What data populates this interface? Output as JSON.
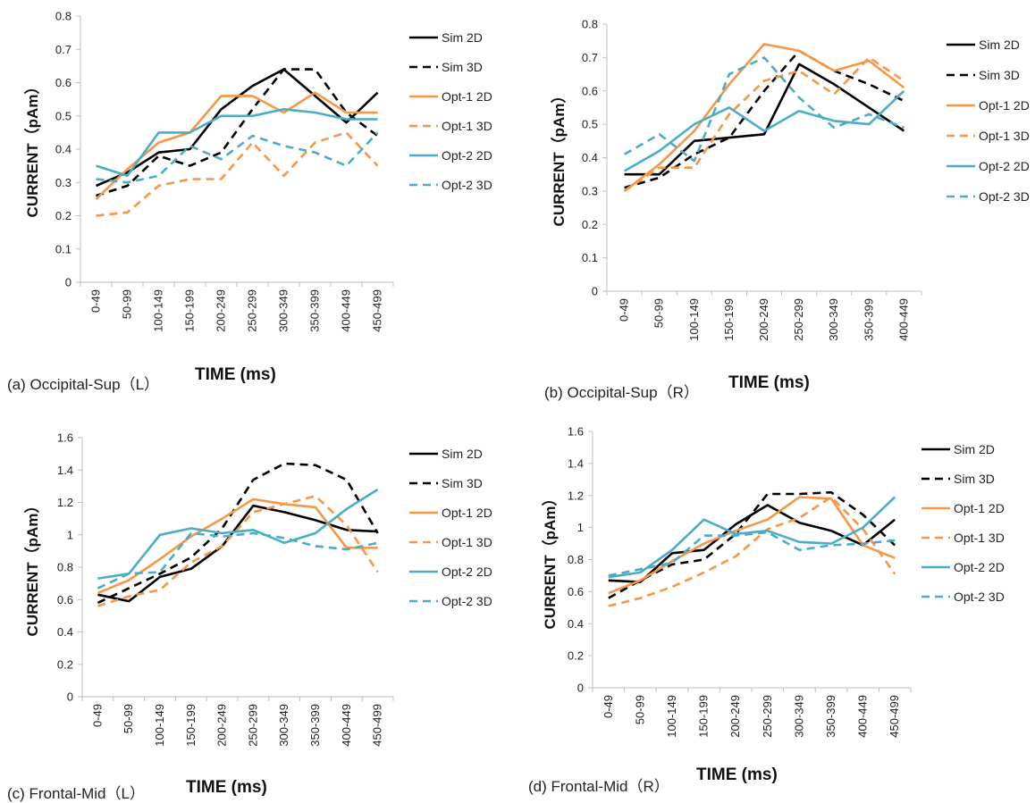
{
  "styles": {
    "Sim 2D": {
      "color": "#000000",
      "dash": false
    },
    "Sim 3D": {
      "color": "#000000",
      "dash": true
    },
    "Opt-1 2D": {
      "color": "#f79646",
      "dash": false
    },
    "Opt-1 3D": {
      "color": "#f79646",
      "dash": true
    },
    "Opt-2 2D": {
      "color": "#4bacc6",
      "dash": false
    },
    "Opt-2 3D": {
      "color": "#4bacc6",
      "dash": true
    }
  },
  "chart_data": [
    {
      "type": "line",
      "caption": "(a) Occipital-Sup（L）",
      "xlabel": "TIME (ms)",
      "ylabel": "CURRENT（pAm）",
      "ylim": [
        0,
        0.8
      ],
      "yticks": [
        "0",
        "0.1",
        "0.2",
        "0.3",
        "0.4",
        "0.5",
        "0.6",
        "0.7",
        "0.8"
      ],
      "grid": false,
      "legend": "right",
      "categories": [
        "0-49",
        "50-99",
        "100-149",
        "150-199",
        "200-249",
        "250-299",
        "300-349",
        "350-399",
        "400-449",
        "450-499"
      ],
      "series": [
        {
          "name": "Sim 2D",
          "values": [
            0.29,
            0.33,
            0.39,
            0.4,
            0.52,
            0.59,
            0.64,
            0.56,
            0.48,
            0.57
          ]
        },
        {
          "name": "Sim 3D",
          "values": [
            0.26,
            0.29,
            0.38,
            0.35,
            0.39,
            0.52,
            0.64,
            0.64,
            0.51,
            0.44
          ]
        },
        {
          "name": "Opt-1 2D",
          "values": [
            0.25,
            0.34,
            0.42,
            0.45,
            0.56,
            0.56,
            0.51,
            0.57,
            0.51,
            0.51
          ]
        },
        {
          "name": "Opt-1 3D",
          "values": [
            0.2,
            0.21,
            0.29,
            0.31,
            0.31,
            0.42,
            0.32,
            0.42,
            0.45,
            0.35
          ]
        },
        {
          "name": "Opt-2 2D",
          "values": [
            0.35,
            0.32,
            0.45,
            0.45,
            0.5,
            0.5,
            0.52,
            0.51,
            0.49,
            0.49
          ]
        },
        {
          "name": "Opt-2 3D",
          "values": [
            0.31,
            0.3,
            0.32,
            0.41,
            0.37,
            0.44,
            0.41,
            0.39,
            0.35,
            0.45
          ]
        }
      ]
    },
    {
      "type": "line",
      "caption": "(b) Occipital-Sup（R）",
      "xlabel": "TIME (ms)",
      "ylabel": "CURRENT（pAm）",
      "ylim": [
        0,
        0.8
      ],
      "yticks": [
        "0",
        "0.1",
        "0.2",
        "0.3",
        "0.4",
        "0.5",
        "0.6",
        "0.7",
        "0.8"
      ],
      "grid": false,
      "legend": "right",
      "categories": [
        "0-49",
        "50-99",
        "100-149",
        "150-199",
        "200-249",
        "250-299",
        "300-349",
        "350-399",
        "400-449"
      ],
      "series": [
        {
          "name": "Sim 2D",
          "values": [
            0.35,
            0.35,
            0.45,
            0.46,
            0.47,
            0.68,
            0.62,
            0.55,
            0.48
          ]
        },
        {
          "name": "Sim 3D",
          "values": [
            0.31,
            0.34,
            0.41,
            0.46,
            0.6,
            0.72,
            0.66,
            0.62,
            0.57
          ]
        },
        {
          "name": "Opt-1 2D",
          "values": [
            0.3,
            0.38,
            0.48,
            0.62,
            0.74,
            0.72,
            0.66,
            0.69,
            0.61
          ]
        },
        {
          "name": "Opt-1 3D",
          "values": [
            0.3,
            0.37,
            0.37,
            0.53,
            0.63,
            0.66,
            0.59,
            0.7,
            0.63
          ]
        },
        {
          "name": "Opt-2 2D",
          "values": [
            0.36,
            0.42,
            0.5,
            0.55,
            0.48,
            0.54,
            0.51,
            0.5,
            0.6
          ]
        },
        {
          "name": "Opt-2 3D",
          "values": [
            0.41,
            0.47,
            0.39,
            0.65,
            0.7,
            0.58,
            0.49,
            0.53,
            0.49
          ]
        }
      ]
    },
    {
      "type": "line",
      "caption": "(c) Frontal-Mid（L）",
      "xlabel": "TIME (ms)",
      "ylabel": "CURRENT（pAm）",
      "ylim": [
        0,
        1.6
      ],
      "yticks": [
        "0",
        "0.2",
        "0.4",
        "0.6",
        "0.8",
        "1",
        "1.2",
        "1.4",
        "1.6"
      ],
      "grid": false,
      "legend": "right",
      "categories": [
        "0-49",
        "50-99",
        "100-149",
        "150-199",
        "200-249",
        "250-299",
        "300-349",
        "350-399",
        "400-449",
        "450-499"
      ],
      "series": [
        {
          "name": "Sim 2D",
          "values": [
            0.63,
            0.59,
            0.74,
            0.79,
            0.93,
            1.18,
            1.14,
            1.09,
            1.03,
            1.02
          ]
        },
        {
          "name": "Sim 3D",
          "values": [
            0.58,
            0.67,
            0.76,
            0.86,
            1.04,
            1.34,
            1.44,
            1.43,
            1.34,
            1.01
          ]
        },
        {
          "name": "Opt-1 2D",
          "values": [
            0.64,
            0.72,
            0.85,
            0.99,
            1.1,
            1.22,
            1.19,
            1.17,
            0.92,
            0.92
          ]
        },
        {
          "name": "Opt-1 3D",
          "values": [
            0.56,
            0.62,
            0.66,
            0.83,
            0.93,
            1.14,
            1.19,
            1.24,
            1.06,
            0.77
          ]
        },
        {
          "name": "Opt-2 2D",
          "values": [
            0.73,
            0.76,
            1.0,
            1.04,
            1.01,
            1.03,
            0.95,
            1.01,
            1.16,
            1.28
          ]
        },
        {
          "name": "Opt-2 3D",
          "values": [
            0.67,
            0.76,
            0.77,
            1.01,
            0.99,
            1.01,
            0.98,
            0.93,
            0.91,
            0.95
          ]
        }
      ]
    },
    {
      "type": "line",
      "caption": "(d) Frontal-Mid（R）",
      "xlabel": "TIME (ms)",
      "ylabel": "CURRENT（pAm）",
      "ylim": [
        0,
        1.6
      ],
      "yticks": [
        "0",
        "0.2",
        "0.4",
        "0.6",
        "0.8",
        "1",
        "1.2",
        "1.4",
        "1.6"
      ],
      "grid": false,
      "legend": "right",
      "categories": [
        "0-49",
        "50-99",
        "100-149",
        "150-199",
        "200-249",
        "250-299",
        "300-349",
        "350-399",
        "400-449",
        "450-499"
      ],
      "series": [
        {
          "name": "Sim 2D",
          "values": [
            0.67,
            0.66,
            0.84,
            0.86,
            1.02,
            1.14,
            1.03,
            0.98,
            0.89,
            1.05
          ]
        },
        {
          "name": "Sim 3D",
          "values": [
            0.56,
            0.67,
            0.77,
            0.8,
            0.96,
            1.21,
            1.21,
            1.22,
            1.08,
            0.89
          ]
        },
        {
          "name": "Opt-1 2D",
          "values": [
            0.59,
            0.67,
            0.79,
            0.9,
            0.98,
            1.05,
            1.19,
            1.18,
            0.89,
            0.81
          ]
        },
        {
          "name": "Opt-1 3D",
          "values": [
            0.51,
            0.56,
            0.63,
            0.72,
            0.82,
            0.99,
            1.06,
            1.19,
            0.99,
            0.71
          ]
        },
        {
          "name": "Opt-2 2D",
          "values": [
            0.69,
            0.72,
            0.86,
            1.05,
            0.96,
            0.98,
            0.91,
            0.9,
            1.0,
            1.19
          ]
        },
        {
          "name": "Opt-2 3D",
          "values": [
            0.7,
            0.74,
            0.78,
            0.95,
            0.95,
            0.97,
            0.86,
            0.89,
            0.9,
            0.92
          ]
        }
      ]
    }
  ]
}
